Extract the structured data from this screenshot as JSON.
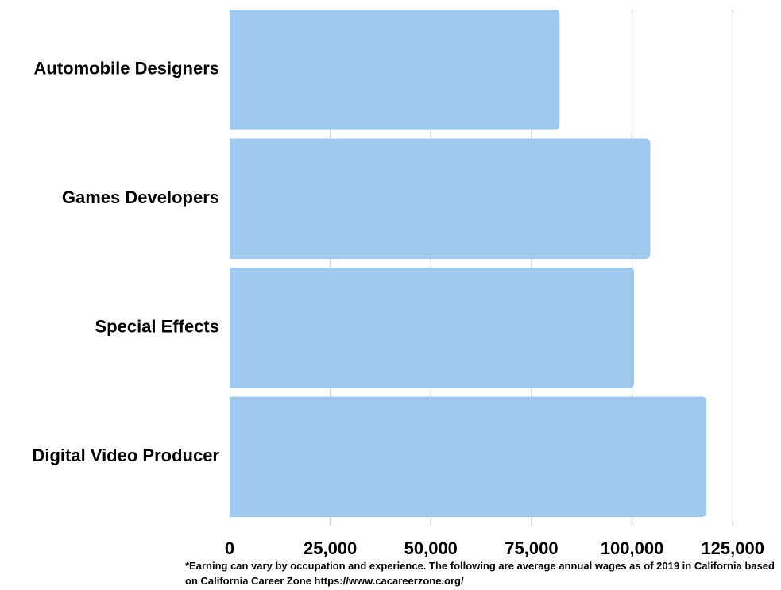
{
  "chart_data": {
    "type": "bar",
    "orientation": "horizontal",
    "categories": [
      "Automobile Designers",
      "Games Developers",
      "Special Effects",
      "Digital Video Producer"
    ],
    "values": [
      82000,
      104500,
      100500,
      118500
    ],
    "xlim": [
      0,
      137000
    ],
    "xticks": [
      0,
      25000,
      50000,
      75000,
      100000,
      125000
    ],
    "xtick_labels": [
      "0",
      "25,000",
      "50,000",
      "75,000",
      "100,000",
      "125,000"
    ],
    "grid": true,
    "bar_color": "#9fc8ec",
    "grid_color": "#d3d3d3"
  },
  "footnote": "*Earning can vary by occupation and experience. The following are average annual wages as of 2019 in California based on California Career Zone  https://www.cacareerzone.org/"
}
